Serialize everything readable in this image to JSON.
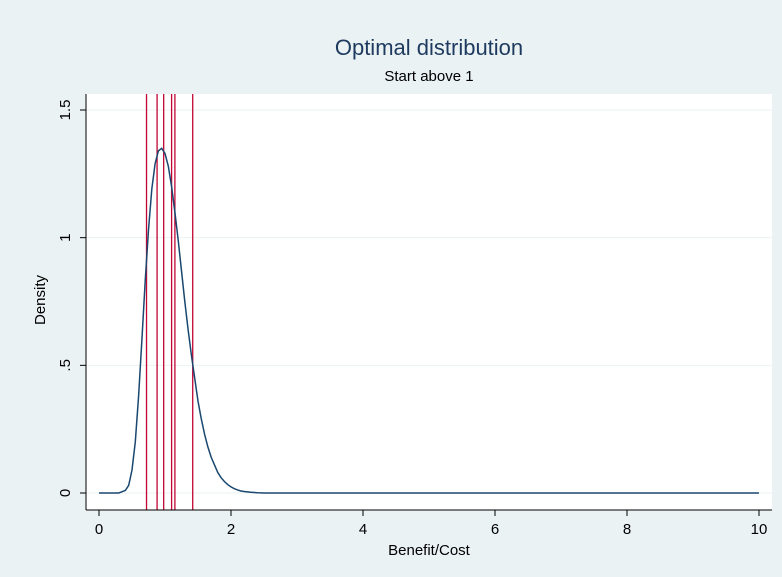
{
  "chart_data": {
    "type": "line",
    "title": "Optimal distribution",
    "subtitle": "Start above 1",
    "xlabel": "Benefit/Cost",
    "ylabel": "Density",
    "xlim": [
      0,
      10
    ],
    "ylim": [
      0,
      1.5
    ],
    "x_ticks": [
      0,
      2,
      4,
      6,
      8,
      10
    ],
    "x_tick_labels": [
      "0",
      "2",
      "4",
      "6",
      "8",
      "10"
    ],
    "y_ticks": [
      0,
      0.5,
      1,
      1.5
    ],
    "y_tick_labels": [
      "0",
      ".5",
      "1",
      "1.5"
    ],
    "grid": "horizontal",
    "legend": "none",
    "series": [
      {
        "x": [
          0,
          0.2,
          0.3,
          0.4,
          0.45,
          0.5,
          0.55,
          0.6,
          0.65,
          0.7,
          0.75,
          0.8,
          0.85,
          0.9,
          0.95,
          1.0,
          1.05,
          1.1,
          1.15,
          1.2,
          1.25,
          1.3,
          1.35,
          1.4,
          1.45,
          1.5,
          1.55,
          1.6,
          1.65,
          1.7,
          1.75,
          1.8,
          1.85,
          1.9,
          1.95,
          2.0,
          2.05,
          2.1,
          2.15,
          2.2,
          2.3,
          2.4,
          2.5,
          2.6,
          3,
          4,
          5,
          6,
          7,
          8,
          9,
          10
        ],
        "values": [
          0,
          0,
          0,
          0.01,
          0.03,
          0.09,
          0.2,
          0.38,
          0.6,
          0.83,
          1.03,
          1.19,
          1.29,
          1.34,
          1.35,
          1.33,
          1.28,
          1.2,
          1.1,
          0.99,
          0.87,
          0.75,
          0.64,
          0.54,
          0.45,
          0.36,
          0.29,
          0.23,
          0.18,
          0.14,
          0.11,
          0.08,
          0.06,
          0.045,
          0.033,
          0.024,
          0.017,
          0.012,
          0.008,
          0.006,
          0.003,
          0.001,
          0,
          0,
          0,
          0,
          0,
          0,
          0,
          0,
          0,
          0
        ]
      }
    ],
    "vertical_lines": [
      0.72,
      0.88,
      0.98,
      1.1,
      1.15,
      1.42
    ],
    "colors": {
      "background": "#eaf2f3",
      "plot_background": "#ffffff",
      "curve": "#1a476f",
      "vertical_lines": "#c10534",
      "grid": "#eaf2f3",
      "title": "#1e3a5f"
    }
  }
}
